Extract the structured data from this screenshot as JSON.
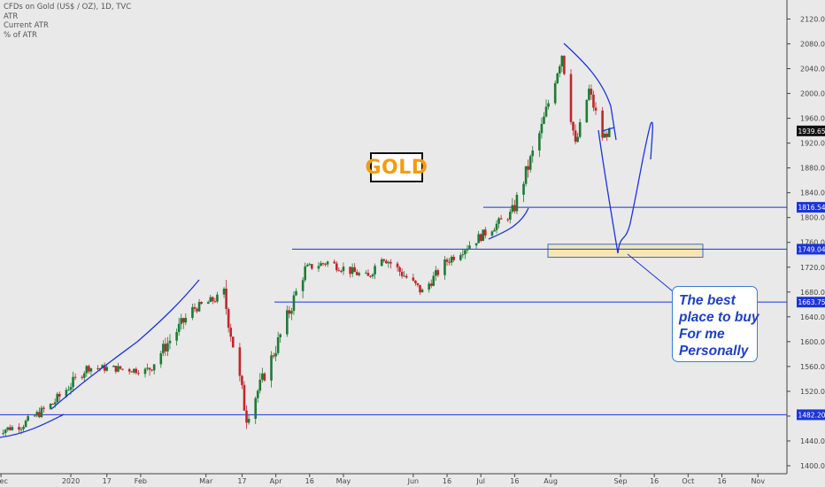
{
  "legend": {
    "title": "CFDs on Gold (US$ / OZ), 1D, TVC",
    "line2": "ATR",
    "line3": "Current ATR",
    "line4": "% of ATR"
  },
  "gold_label": "GOLD",
  "note": {
    "line1": "The best",
    "line2": "place to buy",
    "line3": "For me",
    "line4": "Personally"
  },
  "colors": {
    "background": "#e9e9e9",
    "up_candle": "#1f7a34",
    "down_candle": "#c0272d",
    "annotation_blue": "#1a35d8",
    "last_price_label": "#111111",
    "buy_zone_fill": "#f6e6b4"
  },
  "chart_data": {
    "type": "candlestick",
    "symbol": "CFDs on Gold (US$ / OZ)",
    "timeframe": "1D",
    "y_axis": {
      "ticks": [
        1400,
        1440,
        1480,
        1520,
        1560,
        1600,
        1640,
        1680,
        1720,
        1760,
        1800,
        1840,
        1880,
        1920,
        1960,
        2000,
        2040,
        2080,
        2120
      ],
      "range": [
        1390,
        2130
      ],
      "position": "right"
    },
    "x_axis": {
      "tick_labels": [
        "Dec",
        "2020",
        "17",
        "Feb",
        "Mar",
        "17",
        "Apr",
        "16",
        "May",
        "Jun",
        "16",
        "Jul",
        "16",
        "Aug",
        "Sep",
        "16",
        "Oct",
        "16",
        "Nov"
      ]
    },
    "price_labels": [
      {
        "value": "1939.65",
        "kind": "last_price"
      },
      {
        "value": "1816.54",
        "kind": "level"
      },
      {
        "value": "1749.04",
        "kind": "level"
      },
      {
        "value": "1663.75",
        "kind": "level"
      },
      {
        "value": "1482.20",
        "kind": "level"
      }
    ],
    "horizontal_levels": [
      1816.54,
      1749.04,
      1663.75,
      1482.2
    ],
    "buy_zone": [
      1736,
      1757
    ],
    "price_path": {
      "dates": [
        "2019-11-28",
        "2019-12-10",
        "2019-12-24",
        "2020-01-08",
        "2020-01-20",
        "2020-02-04",
        "2020-02-24",
        "2020-03-09",
        "2020-03-19",
        "2020-04-01",
        "2020-04-14",
        "2020-04-24",
        "2020-05-12",
        "2020-05-18",
        "2020-06-05",
        "2020-06-16",
        "2020-07-01",
        "2020-07-15",
        "2020-07-28",
        "2020-08-06",
        "2020-08-12",
        "2020-08-18",
        "2020-08-24",
        "2020-08-28"
      ],
      "closes": [
        1455,
        1465,
        1500,
        1558,
        1557,
        1553,
        1652,
        1675,
        1478,
        1590,
        1718,
        1728,
        1703,
        1740,
        1680,
        1730,
        1770,
        1808,
        1945,
        2065,
        1915,
        2005,
        1930,
        1940
      ]
    }
  }
}
